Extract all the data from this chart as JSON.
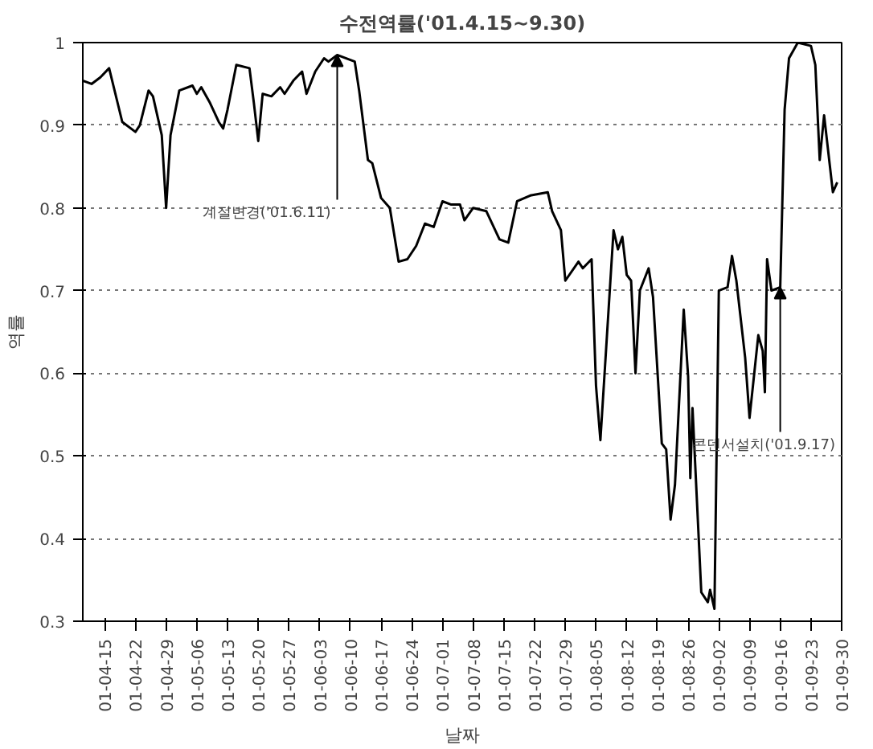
{
  "chart_data": {
    "type": "line",
    "title": "수전역률('01.4.15~9.30)",
    "xlabel": "날짜",
    "ylabel": "역률",
    "x": [
      "2001-04-10",
      "2001-04-12",
      "2001-04-14",
      "2001-04-16",
      "2001-04-19",
      "2001-04-22",
      "2001-04-23",
      "2001-04-25",
      "2001-04-26",
      "2001-04-28",
      "2001-04-29",
      "2001-04-30",
      "2001-05-02",
      "2001-05-05",
      "2001-05-06",
      "2001-05-07",
      "2001-05-09",
      "2001-05-11",
      "2001-05-12",
      "2001-05-13",
      "2001-05-15",
      "2001-05-18",
      "2001-05-19",
      "2001-05-20",
      "2001-05-21",
      "2001-05-23",
      "2001-05-25",
      "2001-05-26",
      "2001-05-28",
      "2001-05-30",
      "2001-05-31",
      "2001-06-02",
      "2001-06-04",
      "2001-06-05",
      "2001-06-07",
      "2001-06-11",
      "2001-06-12",
      "2001-06-14",
      "2001-06-15",
      "2001-06-17",
      "2001-06-19",
      "2001-06-21",
      "2001-06-23",
      "2001-06-25",
      "2001-06-27",
      "2001-06-29",
      "2001-07-01",
      "2001-07-03",
      "2001-07-05",
      "2001-07-06",
      "2001-07-08",
      "2001-07-11",
      "2001-07-14",
      "2001-07-16",
      "2001-07-18",
      "2001-07-21",
      "2001-07-25",
      "2001-07-26",
      "2001-07-28",
      "2001-07-29",
      "2001-08-01",
      "2001-08-02",
      "2001-08-04",
      "2001-08-05",
      "2001-08-06",
      "2001-08-09",
      "2001-08-10",
      "2001-08-11",
      "2001-08-12",
      "2001-08-13",
      "2001-08-14",
      "2001-08-15",
      "2001-08-17",
      "2001-08-18",
      "2001-08-20",
      "2001-08-21",
      "2001-08-22",
      "2001-08-23",
      "2001-08-25",
      "2001-08-26",
      "2001-08-26T12:00",
      "2001-08-27",
      "2001-08-29",
      "2001-08-30T12:00",
      "2001-08-31",
      "2001-09-01",
      "2001-09-02",
      "2001-09-04",
      "2001-09-05",
      "2001-09-06",
      "2001-09-08",
      "2001-09-09",
      "2001-09-11",
      "2001-09-12",
      "2001-09-12T12:00",
      "2001-09-13",
      "2001-09-14",
      "2001-09-16",
      "2001-09-17",
      "2001-09-18",
      "2001-09-20",
      "2001-09-23",
      "2001-09-24",
      "2001-09-25",
      "2001-09-26",
      "2001-09-28",
      "2001-09-29"
    ],
    "series": [
      {
        "color": "#000000",
        "values": [
          0.954,
          0.95,
          0.958,
          0.969,
          0.904,
          0.892,
          0.9,
          0.942,
          0.935,
          0.888,
          0.8,
          0.888,
          0.942,
          0.948,
          0.938,
          0.946,
          0.927,
          0.904,
          0.896,
          0.919,
          0.973,
          0.969,
          0.927,
          0.881,
          0.938,
          0.935,
          0.946,
          0.938,
          0.954,
          0.965,
          0.938,
          0.965,
          0.981,
          0.977,
          0.985,
          0.977,
          0.942,
          0.858,
          0.854,
          0.812,
          0.8,
          0.735,
          0.738,
          0.754,
          0.781,
          0.777,
          0.808,
          0.804,
          0.804,
          0.785,
          0.8,
          0.796,
          0.762,
          0.758,
          0.808,
          0.815,
          0.819,
          0.796,
          0.773,
          0.712,
          0.735,
          0.727,
          0.738,
          0.585,
          0.519,
          0.773,
          0.75,
          0.765,
          0.719,
          0.712,
          0.6,
          0.7,
          0.727,
          0.692,
          0.515,
          0.508,
          0.423,
          0.465,
          0.677,
          0.596,
          0.473,
          0.558,
          0.335,
          0.323,
          0.338,
          0.315,
          0.7,
          0.704,
          0.742,
          0.712,
          0.619,
          0.546,
          0.646,
          0.627,
          0.577,
          0.738,
          0.7,
          0.704,
          0.919,
          0.981,
          1.0,
          0.996,
          0.973,
          0.858,
          0.912,
          0.819,
          0.831
        ]
      }
    ],
    "xlim": [
      "2001-04-10",
      "2001-09-30"
    ],
    "xticks": [
      {
        "value": "2001-04-15",
        "label": "01-04-15"
      },
      {
        "value": "2001-04-22",
        "label": "01-04-22"
      },
      {
        "value": "2001-04-29",
        "label": "01-04-29"
      },
      {
        "value": "2001-05-06",
        "label": "01-05-06"
      },
      {
        "value": "2001-05-13",
        "label": "01-05-13"
      },
      {
        "value": "2001-05-20",
        "label": "01-05-20"
      },
      {
        "value": "2001-05-27",
        "label": "01-05-27"
      },
      {
        "value": "2001-06-03",
        "label": "01-06-03"
      },
      {
        "value": "2001-06-10",
        "label": "01-06-10"
      },
      {
        "value": "2001-06-17",
        "label": "01-06-17"
      },
      {
        "value": "2001-06-24",
        "label": "01-06-24"
      },
      {
        "value": "2001-07-01",
        "label": "01-07-01"
      },
      {
        "value": "2001-07-08",
        "label": "01-07-08"
      },
      {
        "value": "2001-07-15",
        "label": "01-07-15"
      },
      {
        "value": "2001-07-22",
        "label": "01-07-22"
      },
      {
        "value": "2001-07-29",
        "label": "01-07-29"
      },
      {
        "value": "2001-08-05",
        "label": "01-08-05"
      },
      {
        "value": "2001-08-12",
        "label": "01-08-12"
      },
      {
        "value": "2001-08-19",
        "label": "01-08-19"
      },
      {
        "value": "2001-08-26",
        "label": "01-08-26"
      },
      {
        "value": "2001-09-02",
        "label": "01-09-02"
      },
      {
        "value": "2001-09-09",
        "label": "01-09-09"
      },
      {
        "value": "2001-09-16",
        "label": "01-09-16"
      },
      {
        "value": "2001-09-23",
        "label": "01-09-23"
      },
      {
        "value": "2001-09-30",
        "label": "01-09-30"
      }
    ],
    "ylim": [
      0.3,
      1
    ],
    "yticks": [
      0.3,
      0.4,
      0.5,
      0.6,
      0.7,
      0.8,
      0.9,
      1
    ],
    "grid": "y",
    "marker": "none",
    "line_style": "solid",
    "annotations": [
      {
        "text": "계절변경('01.6.11)",
        "x": "2001-06-07",
        "y": 0.985
      },
      {
        "text": "콘덴서설치('01.9.17)",
        "x": "2001-09-16",
        "y": 0.704
      }
    ]
  }
}
